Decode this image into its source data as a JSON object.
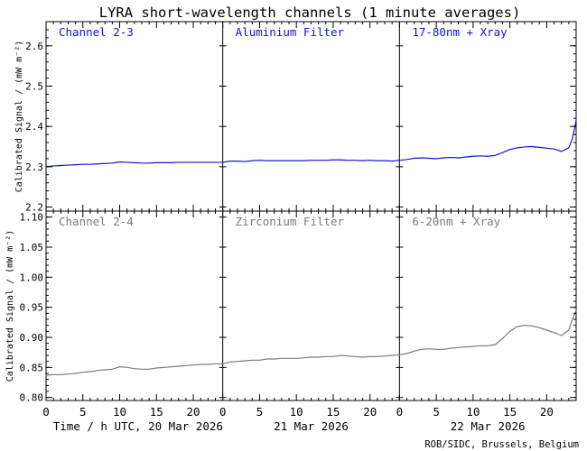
{
  "chart_data": {
    "type": "line",
    "title": "LYRA short-wavelength channels (1 minute averages)",
    "ylabel": "Calibrated Signal / (mW m⁻²)",
    "credit": "ROB/SIDC, Brussels, Belgium",
    "x_ticks": [
      0,
      5,
      10,
      15,
      20
    ],
    "days": [
      {
        "label": "Time / h UTC, 20 Mar 2026"
      },
      {
        "label": "21 Mar 2026"
      },
      {
        "label": "22 Mar 2026"
      }
    ],
    "xlim": [
      0,
      72
    ],
    "rows": [
      {
        "ylim": [
          2.19,
          2.66
        ],
        "yticks": [
          2.2,
          2.3,
          2.4,
          2.5,
          2.6
        ],
        "ytick_labels": [
          "2.2",
          "2.3",
          "2.4",
          "2.5",
          "2.6"
        ],
        "color": "#1414c8",
        "panel_labels": [
          "Channel 2-3",
          "Aluminium Filter",
          "17-80nm + Xray"
        ],
        "series": {
          "name": "Channel 2-3",
          "x": [
            0,
            1,
            2,
            3,
            4,
            5,
            6,
            7,
            8,
            9,
            10,
            11,
            12,
            13,
            14,
            15,
            16,
            17,
            18,
            19,
            20,
            21,
            22,
            23,
            24,
            25,
            26,
            27,
            28,
            29,
            30,
            31,
            32,
            33,
            34,
            35,
            36,
            37,
            38,
            39,
            40,
            41,
            42,
            43,
            44,
            45,
            46,
            47,
            48,
            49,
            50,
            51,
            52,
            53,
            54,
            55,
            56,
            57,
            58,
            59,
            60,
            61,
            62,
            63,
            64,
            65,
            66,
            67,
            68,
            69,
            70,
            71,
            71.5,
            72
          ],
          "y": [
            2.3,
            2.302,
            2.303,
            2.304,
            2.305,
            2.306,
            2.306,
            2.307,
            2.308,
            2.309,
            2.312,
            2.311,
            2.31,
            2.309,
            2.309,
            2.31,
            2.31,
            2.31,
            2.311,
            2.311,
            2.311,
            2.311,
            2.311,
            2.311,
            2.311,
            2.314,
            2.314,
            2.313,
            2.315,
            2.316,
            2.315,
            2.315,
            2.315,
            2.315,
            2.315,
            2.315,
            2.316,
            2.316,
            2.316,
            2.317,
            2.317,
            2.316,
            2.316,
            2.315,
            2.316,
            2.315,
            2.315,
            2.314,
            2.316,
            2.318,
            2.321,
            2.322,
            2.321,
            2.32,
            2.322,
            2.323,
            2.322,
            2.324,
            2.326,
            2.327,
            2.326,
            2.328,
            2.335,
            2.343,
            2.347,
            2.349,
            2.35,
            2.348,
            2.346,
            2.344,
            2.338,
            2.347,
            2.37,
            2.415
          ]
        }
      },
      {
        "ylim": [
          0.795,
          1.11
        ],
        "yticks": [
          0.8,
          0.85,
          0.9,
          0.95,
          1.0,
          1.05,
          1.1
        ],
        "ytick_labels": [
          "0.80",
          "0.85",
          "0.90",
          "0.95",
          "1.00",
          "1.05",
          "1.10"
        ],
        "color": "#7a7a7a",
        "panel_labels": [
          "Channel 2-4",
          "Zirconium Filter",
          "6-20nm + Xray"
        ],
        "series": {
          "name": "Channel 2-4",
          "x": [
            0,
            1,
            2,
            3,
            4,
            5,
            6,
            7,
            8,
            9,
            10,
            11,
            12,
            13,
            14,
            15,
            16,
            17,
            18,
            19,
            20,
            21,
            22,
            23,
            24,
            25,
            26,
            27,
            28,
            29,
            30,
            31,
            32,
            33,
            34,
            35,
            36,
            37,
            38,
            39,
            40,
            41,
            42,
            43,
            44,
            45,
            46,
            47,
            48,
            49,
            50,
            51,
            52,
            53,
            54,
            55,
            56,
            57,
            58,
            59,
            60,
            61,
            62,
            63,
            64,
            65,
            66,
            67,
            68,
            69,
            70,
            71,
            71.5,
            72
          ],
          "y": [
            0.837,
            0.838,
            0.838,
            0.839,
            0.84,
            0.842,
            0.843,
            0.845,
            0.846,
            0.847,
            0.851,
            0.85,
            0.848,
            0.847,
            0.847,
            0.849,
            0.85,
            0.851,
            0.852,
            0.853,
            0.854,
            0.855,
            0.855,
            0.856,
            0.856,
            0.859,
            0.86,
            0.861,
            0.862,
            0.862,
            0.864,
            0.864,
            0.865,
            0.865,
            0.865,
            0.866,
            0.867,
            0.867,
            0.868,
            0.868,
            0.87,
            0.869,
            0.868,
            0.867,
            0.868,
            0.868,
            0.869,
            0.87,
            0.871,
            0.873,
            0.877,
            0.88,
            0.881,
            0.88,
            0.88,
            0.882,
            0.883,
            0.884,
            0.885,
            0.886,
            0.886,
            0.888,
            0.898,
            0.91,
            0.918,
            0.92,
            0.919,
            0.916,
            0.912,
            0.908,
            0.903,
            0.912,
            0.93,
            0.945
          ]
        }
      }
    ]
  }
}
